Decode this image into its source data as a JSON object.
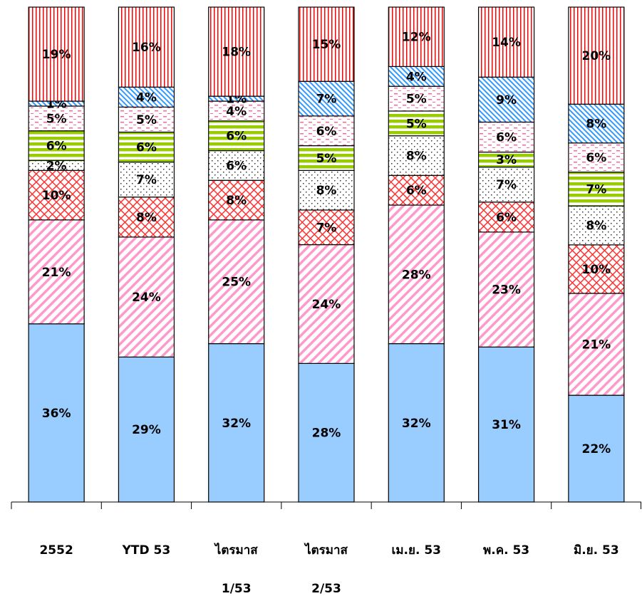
{
  "chart_data": {
    "type": "bar",
    "stacking": "percent",
    "categories": [
      [
        "2552"
      ],
      [
        "YTD 53"
      ],
      [
        "ไตรมาส",
        "1/53"
      ],
      [
        "ไตรมาส",
        "2/53"
      ],
      [
        "เม.ย. 53"
      ],
      [
        "พ.ค. 53"
      ],
      [
        "มิ.ย. 53"
      ]
    ],
    "series": [
      {
        "pattern": "solid",
        "color": "#99ccff",
        "values": [
          36,
          29,
          32,
          28,
          32,
          31,
          22
        ],
        "value_labels": [
          "36%",
          "29%",
          "32%",
          "28%",
          "32%",
          "31%",
          "22%"
        ]
      },
      {
        "pattern": "diagonal",
        "color": "#ff99cc",
        "values": [
          21,
          24,
          25,
          24,
          28,
          23,
          21
        ],
        "value_labels": [
          "21%",
          "24%",
          "25%",
          "24%",
          "28%",
          "23%",
          "21%"
        ]
      },
      {
        "pattern": "crosshatch",
        "color": "#ff3333",
        "values": [
          10,
          8,
          8,
          7,
          6,
          6,
          10
        ],
        "value_labels": [
          "10%",
          "8%",
          "8%",
          "7%",
          "6%",
          "6%",
          "10%"
        ]
      },
      {
        "pattern": "dots",
        "color": "#333333",
        "values": [
          2,
          7,
          6,
          8,
          8,
          7,
          8
        ],
        "value_labels": [
          "2%",
          "7%",
          "6%",
          "8%",
          "8%",
          "7%",
          "8%"
        ]
      },
      {
        "pattern": "hstripes",
        "color": "#99cc00",
        "values": [
          6,
          6,
          6,
          5,
          5,
          3,
          7
        ],
        "value_labels": [
          "6%",
          "6%",
          "6%",
          "5%",
          "5%",
          "3%",
          "7%"
        ]
      },
      {
        "pattern": "dashes",
        "color": "#ff6699",
        "values": [
          5,
          5,
          4,
          6,
          5,
          6,
          6
        ],
        "value_labels": [
          "5%",
          "5%",
          "4%",
          "6%",
          "5%",
          "6%",
          "6%"
        ]
      },
      {
        "pattern": "backdiagonal",
        "color": "#3399ff",
        "values": [
          1,
          4,
          1,
          7,
          4,
          9,
          8
        ],
        "value_labels": [
          "1%",
          "4%",
          "1%",
          "7%",
          "4%",
          "9%",
          "8%"
        ]
      },
      {
        "pattern": "vstripes",
        "color": "#ff0000",
        "values": [
          19,
          16,
          18,
          15,
          12,
          14,
          20
        ],
        "value_labels": [
          "19%",
          "16%",
          "18%",
          "15%",
          "12%",
          "14%",
          "20%"
        ]
      }
    ]
  }
}
